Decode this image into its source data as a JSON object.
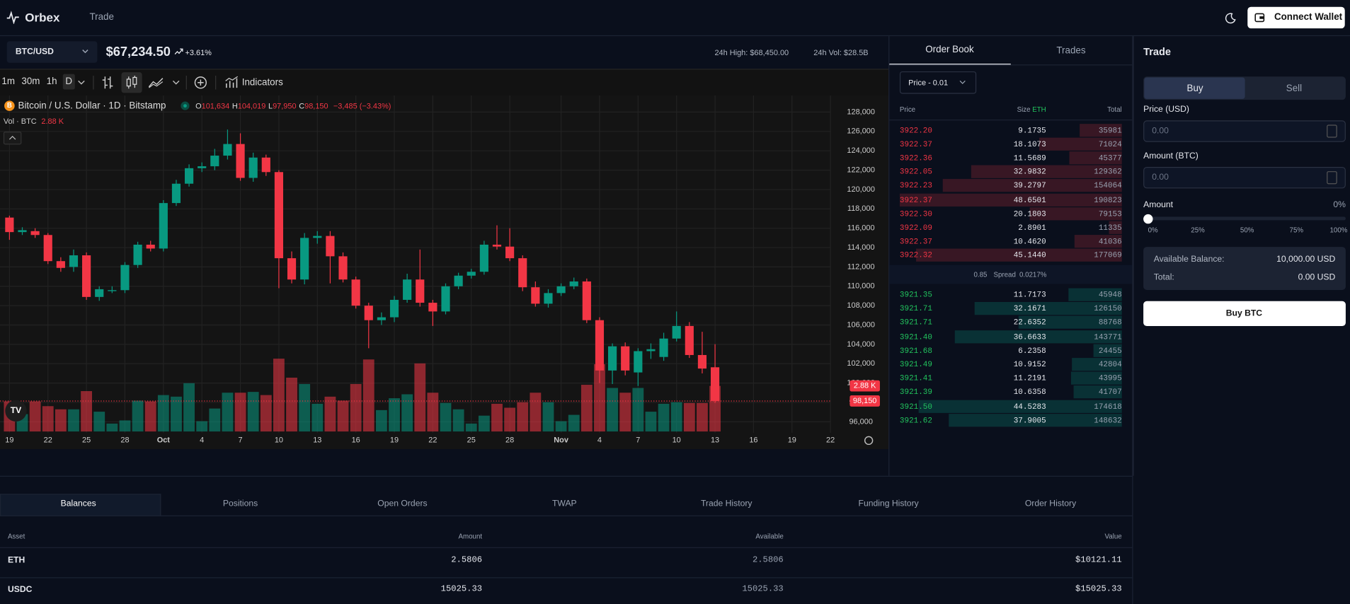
{
  "nav": {
    "brand": "Orbex",
    "links": [
      "Trade"
    ],
    "connect": "Connect Wallet"
  },
  "ticker": {
    "symbol": "BTC/USD",
    "price": "$67,234.50",
    "change": "+3.61%",
    "high": "24h High: $68,450.00",
    "volume": "24h Vol: $28.5B"
  },
  "toolbar": {
    "intervals": [
      "1m",
      "30m",
      "1h",
      "D"
    ],
    "active_interval": 3,
    "indicators": "Indicators"
  },
  "chart_data": {
    "type": "candlestick",
    "title": "Bitcoin / U.S. Dollar · 1D · Bitstamp",
    "legend": [
      {
        "key": "O",
        "value": "101,634"
      },
      {
        "key": "H",
        "value": "104,019"
      },
      {
        "key": "L",
        "value": "97,950"
      },
      {
        "key": "C",
        "value": "98,150"
      }
    ],
    "legend_change": "−3,485 (−3.43%)",
    "volume_label": "Vol · BTC",
    "volume_value": "2.88 K",
    "last_price_label": "98,150",
    "categories": [
      "19",
      null,
      null,
      "22",
      null,
      null,
      "25",
      null,
      null,
      "28",
      null,
      null,
      "Oct",
      null,
      null,
      "4",
      null,
      null,
      "7",
      null,
      null,
      "10",
      null,
      null,
      "13",
      null,
      null,
      "16",
      null,
      null,
      "19",
      null,
      null,
      "22",
      null,
      null,
      "25",
      null,
      null,
      "28",
      null,
      null,
      null,
      "Nov",
      null,
      null,
      "4",
      null,
      null,
      "7",
      null,
      null,
      "10",
      null,
      null,
      "13",
      null,
      null,
      "16",
      null,
      null,
      "19",
      null,
      null,
      "22"
    ],
    "open": [
      117100,
      115600,
      115700,
      115300,
      112600,
      112000,
      113200,
      108900,
      109500,
      109600,
      112200,
      114300,
      113900,
      118600,
      120600,
      122200,
      122400,
      123500,
      124700,
      121200,
      123300,
      121800,
      112900,
      110700,
      115000,
      115200,
      113100,
      110700,
      108000,
      106500,
      106800,
      108600,
      110700,
      108300,
      107400,
      110000,
      111100,
      111500,
      114300,
      114100,
      112900,
      109900,
      108200,
      109300,
      110000,
      110500,
      106500,
      101300,
      103800,
      101100,
      103300,
      102700,
      104600,
      105900,
      102900,
      101634,
      null,
      null,
      null,
      null,
      null,
      null,
      null,
      null,
      null
    ],
    "high": [
      117300,
      116100,
      116000,
      115500,
      113000,
      113800,
      113500,
      110000,
      110000,
      112500,
      114600,
      114700,
      118900,
      121000,
      122600,
      122800,
      124200,
      126200,
      125800,
      123800,
      123600,
      122000,
      113600,
      115500,
      115700,
      115700,
      113500,
      111000,
      108300,
      107300,
      109000,
      111300,
      113800,
      108600,
      110300,
      111400,
      111800,
      114700,
      116300,
      116000,
      113200,
      110500,
      109700,
      110300,
      110900,
      110800,
      106800,
      104100,
      104200,
      103600,
      104100,
      105200,
      107400,
      106300,
      105300,
      104019,
      null,
      null,
      null,
      null,
      null,
      null,
      null,
      null,
      null
    ],
    "low": [
      114800,
      115300,
      115000,
      112300,
      111500,
      111500,
      108600,
      108500,
      109300,
      109300,
      111900,
      113600,
      113600,
      118300,
      120300,
      121800,
      122000,
      123100,
      120900,
      120800,
      121400,
      109800,
      110300,
      110200,
      114400,
      110300,
      110400,
      107700,
      103600,
      106000,
      106300,
      108300,
      107900,
      105900,
      107100,
      109700,
      110800,
      111200,
      113800,
      112600,
      109500,
      107900,
      107800,
      109000,
      109700,
      106200,
      100000,
      99900,
      100800,
      99700,
      102500,
      102300,
      104300,
      102600,
      101000,
      97950,
      null,
      null,
      null,
      null,
      null,
      null,
      null,
      null,
      null
    ],
    "close": [
      115600,
      115800,
      115300,
      112600,
      111900,
      113200,
      108900,
      109700,
      109600,
      112200,
      114300,
      113900,
      118600,
      120600,
      122200,
      122400,
      123500,
      124700,
      121200,
      123300,
      121800,
      112900,
      110700,
      115000,
      115200,
      113100,
      110700,
      108000,
      106500,
      106800,
      108600,
      110700,
      108300,
      107400,
      110000,
      111100,
      111500,
      114300,
      114100,
      112900,
      109900,
      108200,
      109300,
      110000,
      110500,
      106500,
      101300,
      103800,
      101300,
      103300,
      103500,
      104600,
      105900,
      102900,
      101500,
      98150,
      null,
      null,
      null,
      null,
      null,
      null,
      null,
      null,
      null
    ],
    "volume": [
      1.9,
      1.1,
      1.9,
      1.6,
      1.4,
      1.4,
      2.55,
      1.25,
      0.5,
      0.7,
      1.95,
      1.9,
      2.3,
      2.2,
      3.05,
      0.65,
      1.45,
      2.45,
      2.45,
      2.5,
      2.3,
      4.6,
      3.4,
      3.0,
      1.75,
      2.2,
      1.95,
      3.0,
      4.55,
      1.35,
      2.1,
      2.35,
      4.3,
      2.45,
      1.8,
      1.4,
      0.5,
      1.0,
      1.75,
      1.5,
      1.85,
      2.45,
      1.85,
      0.65,
      1.05,
      2.95,
      4.25,
      2.75,
      2.45,
      2.75,
      1.25,
      1.75,
      1.85,
      1.8,
      1.8,
      2.88,
      null,
      null,
      null,
      null,
      null,
      null,
      null,
      null,
      null
    ],
    "volume_ylim": [
      0,
      6
    ],
    "ylim": [
      95000,
      129800
    ],
    "yticks": [
      {
        "value": 96000,
        "label": "96,000"
      },
      {
        "value": 98000,
        "label": "98,000"
      },
      {
        "value": 100000,
        "label": "100,000"
      },
      {
        "value": 102000,
        "label": "102,000"
      },
      {
        "value": 104000,
        "label": "104,000"
      },
      {
        "value": 106000,
        "label": "106,000"
      },
      {
        "value": 108000,
        "label": "108,000"
      },
      {
        "value": 110000,
        "label": "110,000"
      },
      {
        "value": 112000,
        "label": "112,000"
      },
      {
        "value": 114000,
        "label": "114,000"
      },
      {
        "value": 116000,
        "label": "116,000"
      },
      {
        "value": 118000,
        "label": "118,000"
      },
      {
        "value": 120000,
        "label": "120,000"
      },
      {
        "value": 122000,
        "label": "122,000"
      },
      {
        "value": 124000,
        "label": "124,000"
      },
      {
        "value": 126000,
        "label": "126,000"
      },
      {
        "value": 128000,
        "label": "128,000"
      }
    ],
    "up_color": "#089981",
    "down_color": "#f23645",
    "grid": true
  },
  "order_book": {
    "tabs": [
      "Order Book",
      "Trades"
    ],
    "precision": "Price - 0.01",
    "columns": [
      "Price",
      "Size",
      "Total"
    ],
    "size_unit": "ETH",
    "asks": [
      [
        "3922.20",
        "9.1735",
        "35981"
      ],
      [
        "3922.37",
        "18.1073",
        "71024"
      ],
      [
        "3922.36",
        "11.5689",
        "45377"
      ],
      [
        "3922.05",
        "32.9832",
        "129362"
      ],
      [
        "3922.23",
        "39.2797",
        "154064"
      ],
      [
        "3922.37",
        "48.6501",
        "190823"
      ],
      [
        "3922.30",
        "20.1803",
        "79153"
      ],
      [
        "3922.09",
        "2.8901",
        "11335"
      ],
      [
        "3922.37",
        "10.4620",
        "41036"
      ],
      [
        "3922.32",
        "45.1440",
        "177069"
      ]
    ],
    "spread": {
      "value": "0.85",
      "label": "Spread",
      "percent": "0.0217%"
    },
    "bids": [
      [
        "3921.35",
        "11.7173",
        "45948"
      ],
      [
        "3921.71",
        "32.1671",
        "126150"
      ],
      [
        "3921.71",
        "22.6352",
        "88768"
      ],
      [
        "3921.40",
        "36.6633",
        "143771"
      ],
      [
        "3921.68",
        "6.2358",
        "24455"
      ],
      [
        "3921.49",
        "10.9152",
        "42804"
      ],
      [
        "3921.41",
        "11.2191",
        "43995"
      ],
      [
        "3921.39",
        "10.6358",
        "41707"
      ],
      [
        "3921.50",
        "44.5283",
        "174618"
      ],
      [
        "3921.62",
        "37.9005",
        "148632"
      ]
    ]
  },
  "trade": {
    "title": "Trade",
    "sides": [
      "Buy",
      "Sell"
    ],
    "price_label": "Price (USD)",
    "price_placeholder": "0.00",
    "amount_label": "Amount (BTC)",
    "amount_placeholder": "0.00",
    "slider_label": "Amount",
    "slider_value": "0%",
    "slider_marks": [
      "0%",
      "25%",
      "50%",
      "75%",
      "100%"
    ],
    "available_label": "Available Balance:",
    "available": "10,000.00 USD",
    "total_label": "Total:",
    "total": "0.00 USD",
    "submit": "Buy BTC"
  },
  "bottom": {
    "tabs": [
      "Balances",
      "Positions",
      "Open Orders",
      "TWAP",
      "Trade History",
      "Funding History",
      "Order History"
    ],
    "columns": [
      "Asset",
      "Amount",
      "Available",
      "Value"
    ],
    "rows": [
      [
        "ETH",
        "2.5806",
        "2.5806",
        "$10121.11"
      ],
      [
        "USDC",
        "15025.33",
        "15025.33",
        "$15025.33"
      ]
    ]
  }
}
